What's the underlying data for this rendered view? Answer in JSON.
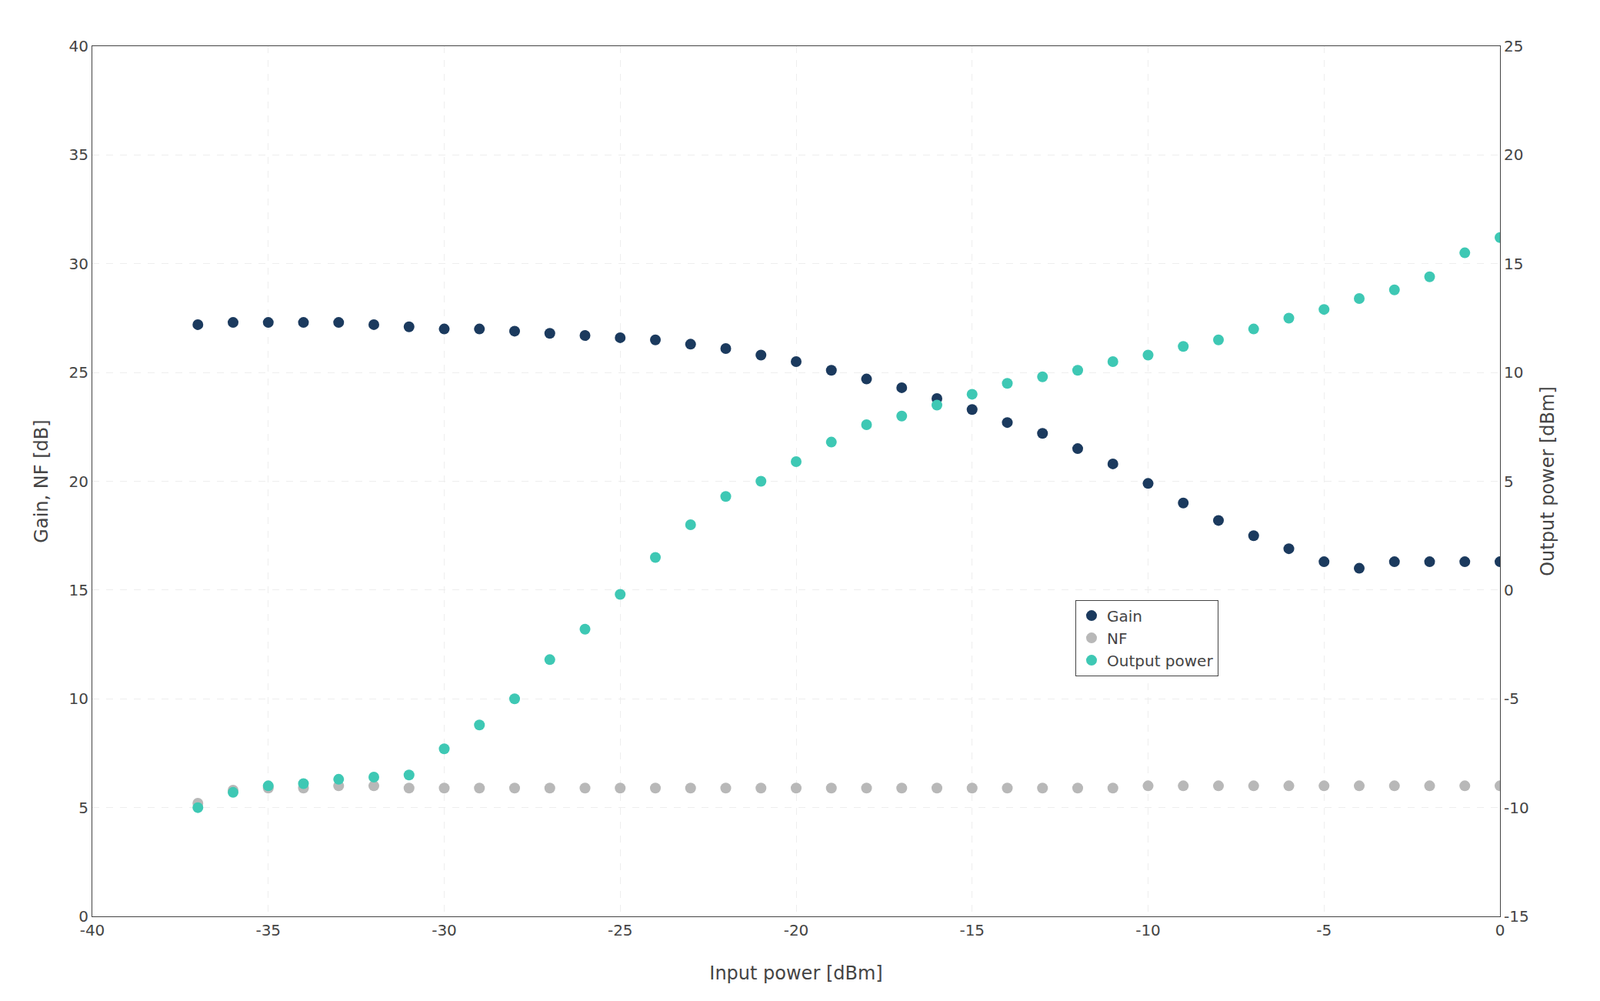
{
  "chart_data": {
    "type": "scatter",
    "x_label": "Input power [dBm]",
    "y_label": "Gain, NF [dB]",
    "y2_label": "Output power [dBm]",
    "x": [
      -37,
      -36,
      -35,
      -34,
      -33,
      -32,
      -31,
      -30,
      -29,
      -28,
      -27,
      -26,
      -25,
      -24,
      -23,
      -22,
      -21,
      -20,
      -19,
      -18,
      -17,
      -16,
      -15,
      -14,
      -13,
      -12,
      -11,
      -10,
      -9,
      -8,
      -7,
      -6,
      -5,
      -4,
      -3,
      -2,
      -1,
      0
    ],
    "series": [
      {
        "name": "Gain",
        "color": "#1b3a5e",
        "values": [
          27.2,
          27.3,
          27.3,
          27.3,
          27.3,
          27.2,
          27.1,
          27.0,
          27.0,
          26.9,
          26.8,
          26.7,
          26.6,
          26.5,
          26.3,
          26.1,
          25.8,
          25.5,
          25.1,
          24.7,
          24.3,
          23.8,
          23.3,
          22.7,
          22.2,
          21.5,
          20.8,
          19.9,
          19.0,
          18.2,
          17.5,
          16.9,
          16.3,
          16.0,
          16.3,
          16.3,
          16.3,
          16.3
        ]
      },
      {
        "name": "NF",
        "color": "#b8b8b8",
        "values": [
          5.2,
          5.8,
          5.9,
          5.9,
          6.0,
          6.0,
          5.9,
          5.9,
          5.9,
          5.9,
          5.9,
          5.9,
          5.9,
          5.9,
          5.9,
          5.9,
          5.9,
          5.9,
          5.9,
          5.9,
          5.9,
          5.9,
          5.9,
          5.9,
          5.9,
          5.9,
          5.9,
          6.0,
          6.0,
          6.0,
          6.0,
          6.0,
          6.0,
          6.0,
          6.0,
          6.0,
          6.0,
          6.0
        ]
      },
      {
        "name": "Output power",
        "color": "#3ec8b4",
        "axis": "y2",
        "values": [
          -10.0,
          -9.3,
          -9.0,
          -8.9,
          -8.7,
          -8.6,
          -8.5,
          -7.3,
          -6.2,
          -5.0,
          -3.2,
          -1.8,
          -0.2,
          1.5,
          3.0,
          4.3,
          5.0,
          5.9,
          6.8,
          7.6,
          8.0,
          8.5,
          9.0,
          9.5,
          9.8,
          10.1,
          10.5,
          10.8,
          11.2,
          11.5,
          12.0,
          12.5,
          12.9,
          13.4,
          13.8,
          14.4,
          15.5,
          16.2
        ]
      }
    ],
    "xlim": [
      -40,
      0
    ],
    "xticks": [
      -40,
      -35,
      -30,
      -25,
      -20,
      -15,
      -10,
      -5,
      0
    ],
    "ylim": [
      0,
      40
    ],
    "yticks": [
      0,
      5,
      10,
      15,
      20,
      25,
      30,
      35,
      40
    ],
    "y2lim": [
      -15,
      25
    ],
    "y2ticks": [
      -15,
      -10,
      -5,
      0,
      5,
      10,
      15,
      20,
      25
    ],
    "grid": true,
    "legend": "right"
  }
}
